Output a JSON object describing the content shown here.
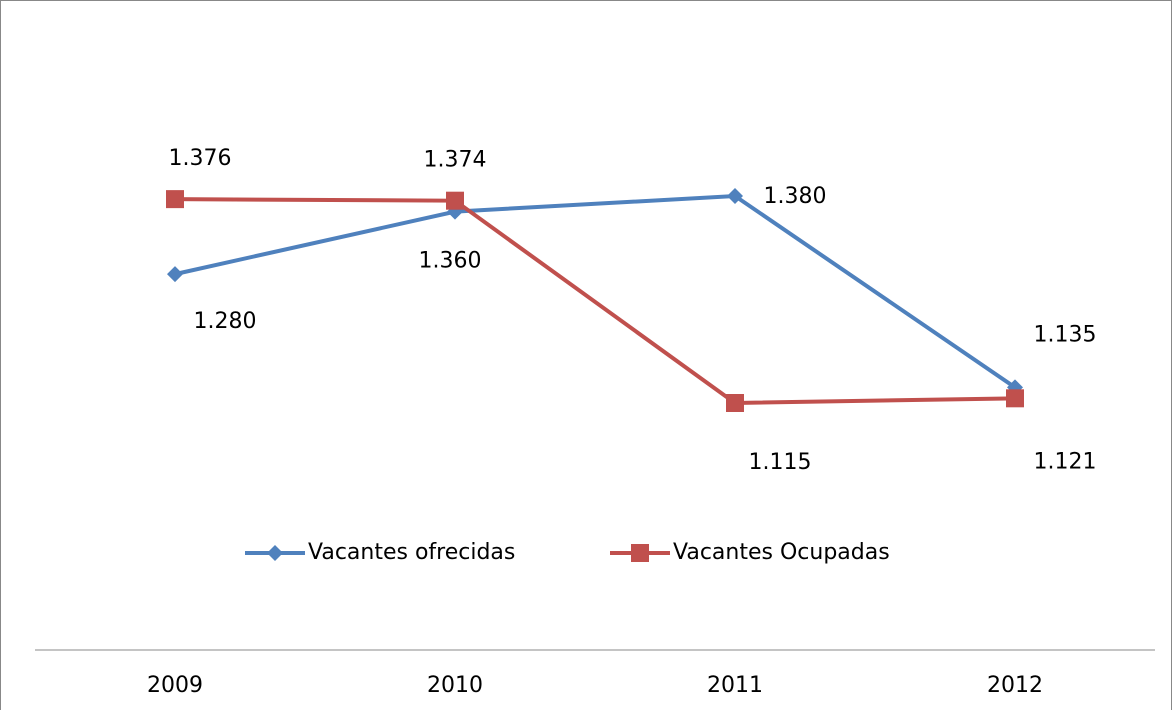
{
  "chart_data": {
    "type": "line",
    "categories": [
      "2009",
      "2010",
      "2011",
      "2012"
    ],
    "series": [
      {
        "name": "Vacantes ofrecidas",
        "color": "#4f81bd",
        "marker": "diamond",
        "values": [
          1280,
          1360,
          1380,
          1135
        ],
        "value_labels": [
          "1.280",
          "1.360",
          "1.380",
          "1.135"
        ]
      },
      {
        "name": "Vacantes Ocupadas",
        "color": "#c0504d",
        "marker": "square",
        "values": [
          1376,
          1374,
          1115,
          1121
        ],
        "value_labels": [
          "1.376",
          "1.374",
          "1.115",
          "1.121"
        ]
      }
    ],
    "legend": "bottom"
  }
}
